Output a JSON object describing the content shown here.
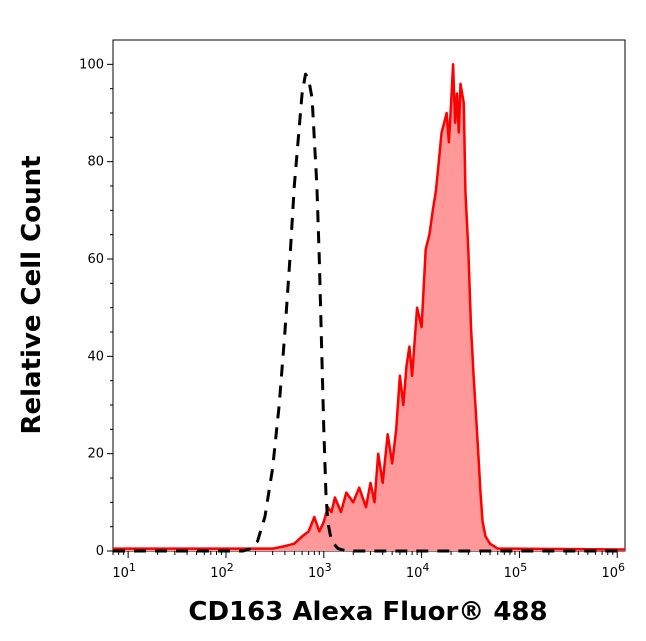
{
  "chart_data": {
    "type": "area",
    "title": "",
    "xlabel": "CD163 Alexa Fluor® 488",
    "ylabel": "Relative Cell Count",
    "x_scale": "log",
    "xlim": [
      7,
      1200000
    ],
    "ylim": [
      0,
      105
    ],
    "x_ticks": [
      {
        "value": 10,
        "base": "10",
        "exp": "1"
      },
      {
        "value": 100,
        "base": "10",
        "exp": "2"
      },
      {
        "value": 1000,
        "base": "10",
        "exp": "3"
      },
      {
        "value": 10000,
        "base": "10",
        "exp": "4"
      },
      {
        "value": 100000,
        "base": "10",
        "exp": "5"
      },
      {
        "value": 1000000,
        "base": "10",
        "exp": "6"
      }
    ],
    "y_ticks": [
      0,
      20,
      40,
      60,
      80,
      100
    ],
    "grid": false,
    "legend": "none",
    "series": [
      {
        "style": "dashed-line",
        "color": "#000000",
        "points": [
          [
            7,
            0
          ],
          [
            150,
            0
          ],
          [
            180,
            0.5
          ],
          [
            210,
            2
          ],
          [
            250,
            7
          ],
          [
            300,
            17
          ],
          [
            350,
            30
          ],
          [
            400,
            45
          ],
          [
            450,
            60
          ],
          [
            500,
            75
          ],
          [
            550,
            85
          ],
          [
            600,
            94
          ],
          [
            650,
            98
          ],
          [
            700,
            97
          ],
          [
            760,
            93
          ],
          [
            850,
            75
          ],
          [
            900,
            60
          ],
          [
            950,
            42
          ],
          [
            1000,
            25
          ],
          [
            1050,
            12
          ],
          [
            1100,
            6
          ],
          [
            1200,
            2
          ],
          [
            1400,
            0.5
          ],
          [
            1700,
            0
          ],
          [
            1200000,
            0
          ]
        ]
      },
      {
        "style": "filled-area",
        "color": "#ff0000",
        "fill": "#ff9999",
        "points": [
          [
            7,
            0.5
          ],
          [
            300,
            0.5
          ],
          [
            400,
            1
          ],
          [
            500,
            1.5
          ],
          [
            600,
            3
          ],
          [
            700,
            4
          ],
          [
            800,
            7
          ],
          [
            900,
            4
          ],
          [
            1000,
            6
          ],
          [
            1100,
            9
          ],
          [
            1200,
            8
          ],
          [
            1300,
            11
          ],
          [
            1500,
            8
          ],
          [
            1700,
            12
          ],
          [
            2000,
            10
          ],
          [
            2300,
            13
          ],
          [
            2700,
            9
          ],
          [
            3000,
            14
          ],
          [
            3300,
            10
          ],
          [
            3600,
            20
          ],
          [
            4000,
            14
          ],
          [
            4500,
            24
          ],
          [
            5000,
            18
          ],
          [
            5500,
            25
          ],
          [
            6000,
            36
          ],
          [
            6500,
            30
          ],
          [
            7000,
            38
          ],
          [
            7500,
            42
          ],
          [
            8000,
            36
          ],
          [
            9000,
            50
          ],
          [
            10000,
            46
          ],
          [
            11000,
            62
          ],
          [
            12000,
            65
          ],
          [
            13000,
            70
          ],
          [
            14000,
            74
          ],
          [
            15000,
            80
          ],
          [
            16000,
            86
          ],
          [
            17000,
            88
          ],
          [
            18000,
            90
          ],
          [
            19000,
            84
          ],
          [
            20000,
            92
          ],
          [
            21000,
            100
          ],
          [
            22000,
            88
          ],
          [
            23000,
            94
          ],
          [
            24000,
            86
          ],
          [
            25000,
            96
          ],
          [
            27000,
            92
          ],
          [
            28000,
            74
          ],
          [
            30000,
            62
          ],
          [
            32000,
            46
          ],
          [
            34000,
            36
          ],
          [
            36000,
            28
          ],
          [
            38000,
            20
          ],
          [
            40000,
            12
          ],
          [
            42000,
            6
          ],
          [
            45000,
            3
          ],
          [
            50000,
            1.5
          ],
          [
            60000,
            0.5
          ],
          [
            1200000,
            0.3
          ]
        ]
      }
    ]
  }
}
